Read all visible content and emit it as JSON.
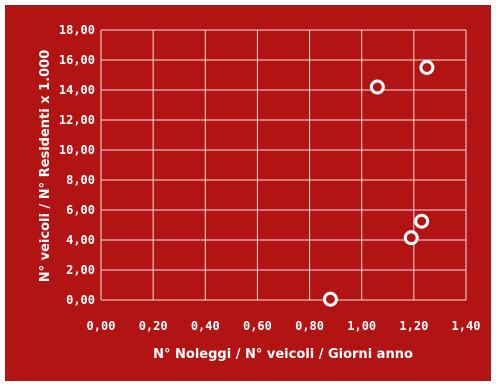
{
  "chart_data": {
    "type": "scatter",
    "title": "",
    "xlabel": "N° Noleggi / N° veicoli / Giorni anno",
    "ylabel": "N° veicoli / N° Residenti x 1.000",
    "xlim": [
      0,
      1.4
    ],
    "ylim": [
      0,
      18
    ],
    "xticks": [
      0,
      0.2,
      0.4,
      0.6,
      0.8,
      1.0,
      1.2,
      1.4
    ],
    "yticks": [
      0,
      2,
      4,
      6,
      8,
      10,
      12,
      14,
      16,
      18
    ],
    "xtick_labels": [
      "0,00",
      "0,20",
      "0,40",
      "0,60",
      "0,80",
      "1,00",
      "1,20",
      "1,40"
    ],
    "ytick_labels": [
      "0,00",
      "2,00",
      "4,00",
      "6,00",
      "8,00",
      "10,00",
      "12,00",
      "14,00",
      "16,00",
      "18,00"
    ],
    "grid": true,
    "legend": "none",
    "points": [
      {
        "x": 0.88,
        "y": 0.05
      },
      {
        "x": 1.06,
        "y": 14.2
      },
      {
        "x": 1.19,
        "y": 4.15
      },
      {
        "x": 1.23,
        "y": 5.25
      },
      {
        "x": 1.25,
        "y": 15.5
      }
    ]
  },
  "colors": {
    "background": "#b21414",
    "grid": "#ffffff",
    "text": "#ffffff",
    "marker_stroke": "#ffffff",
    "marker_fill": "#b21414"
  }
}
